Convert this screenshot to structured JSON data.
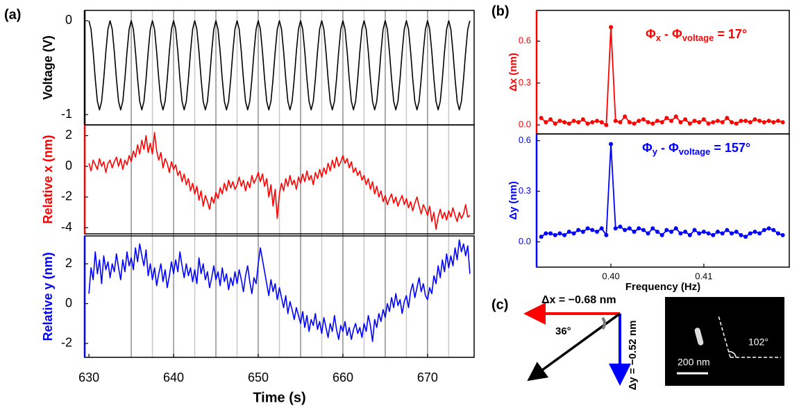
{
  "chart_data": [
    {
      "type": "line",
      "panel_label": "(a)",
      "xlabel": "Time (s)",
      "x": [
        630,
        630.25,
        630.5,
        630.75,
        631,
        631.25,
        631.5,
        631.75,
        632,
        632.25,
        632.5,
        632.75,
        633,
        633.25,
        633.5,
        633.75,
        634,
        634.25,
        634.5,
        634.75,
        635,
        635.25,
        635.5,
        635.75,
        636,
        636.25,
        636.5,
        636.75,
        637,
        637.25,
        637.5,
        637.75,
        638,
        638.25,
        638.5,
        638.75,
        639,
        639.25,
        639.5,
        639.75,
        640,
        640.25,
        640.5,
        640.75,
        641,
        641.25,
        641.5,
        641.75,
        642,
        642.25,
        642.5,
        642.75,
        643,
        643.25,
        643.5,
        643.75,
        644,
        644.25,
        644.5,
        644.75,
        645,
        645.25,
        645.5,
        645.75,
        646,
        646.25,
        646.5,
        646.75,
        647,
        647.25,
        647.5,
        647.75,
        648,
        648.25,
        648.5,
        648.75,
        649,
        649.25,
        649.5,
        649.75,
        650,
        650.25,
        650.5,
        650.75,
        651,
        651.25,
        651.5,
        651.75,
        652,
        652.25,
        652.5,
        652.75,
        653,
        653.25,
        653.5,
        653.75,
        654,
        654.25,
        654.5,
        654.75,
        655,
        655.25,
        655.5,
        655.75,
        656,
        656.25,
        656.5,
        656.75,
        657,
        657.25,
        657.5,
        657.75,
        658,
        658.25,
        658.5,
        658.75,
        659,
        659.25,
        659.5,
        659.75,
        660,
        660.25,
        660.5,
        660.75,
        661,
        661.25,
        661.5,
        661.75,
        662,
        662.25,
        662.5,
        662.75,
        663,
        663.25,
        663.5,
        663.75,
        664,
        664.25,
        664.5,
        664.75,
        665,
        665.25,
        665.5,
        665.75,
        666,
        666.25,
        666.5,
        666.75,
        667,
        667.25,
        667.5,
        667.75,
        668,
        668.25,
        668.5,
        668.75,
        669,
        669.25,
        669.5,
        669.75,
        670,
        670.25,
        670.5,
        670.75,
        671,
        671.25,
        671.5,
        671.75,
        672,
        672.25,
        672.5,
        672.75,
        673,
        673.25,
        673.5,
        673.75,
        674,
        674.25,
        674.5,
        674.75,
        675
      ],
      "xlim": [
        629.5,
        675.5
      ],
      "xticks": [
        630,
        640,
        650,
        660,
        670
      ],
      "vlines": [
        635,
        637.5,
        640,
        642.5,
        645,
        647.5,
        650,
        652.5,
        655,
        657.5,
        660,
        662.5,
        665,
        667.5,
        670,
        672.5
      ],
      "series": [
        {
          "name": "Voltage (V)",
          "color": "#000000",
          "ylim": [
            -1.11,
            0.11
          ],
          "yticks": [
            0,
            -1
          ],
          "values": [
            0,
            -0.09,
            -0.33,
            -0.62,
            -0.86,
            -0.95,
            -0.86,
            -0.62,
            -0.33,
            -0.09,
            0,
            -0.09,
            -0.33,
            -0.62,
            -0.86,
            -0.95,
            -0.86,
            -0.62,
            -0.33,
            -0.09,
            0,
            -0.09,
            -0.33,
            -0.62,
            -0.86,
            -0.95,
            -0.86,
            -0.62,
            -0.33,
            -0.09,
            0,
            -0.09,
            -0.33,
            -0.62,
            -0.86,
            -0.95,
            -0.86,
            -0.62,
            -0.33,
            -0.09,
            0,
            -0.09,
            -0.33,
            -0.62,
            -0.86,
            -0.95,
            -0.86,
            -0.62,
            -0.33,
            -0.09,
            0,
            -0.09,
            -0.33,
            -0.62,
            -0.86,
            -0.95,
            -0.86,
            -0.62,
            -0.33,
            -0.09,
            0,
            -0.09,
            -0.33,
            -0.62,
            -0.86,
            -0.95,
            -0.86,
            -0.62,
            -0.33,
            -0.09,
            0,
            -0.09,
            -0.33,
            -0.62,
            -0.86,
            -0.95,
            -0.86,
            -0.62,
            -0.33,
            -0.09,
            0,
            -0.09,
            -0.33,
            -0.62,
            -0.86,
            -0.95,
            -0.86,
            -0.62,
            -0.33,
            -0.09,
            0,
            -0.09,
            -0.33,
            -0.62,
            -0.86,
            -0.95,
            -0.86,
            -0.62,
            -0.33,
            -0.09,
            0,
            -0.09,
            -0.33,
            -0.62,
            -0.86,
            -0.95,
            -0.86,
            -0.62,
            -0.33,
            -0.09,
            0,
            -0.09,
            -0.33,
            -0.62,
            -0.86,
            -0.95,
            -0.86,
            -0.62,
            -0.33,
            -0.09,
            0,
            -0.09,
            -0.33,
            -0.62,
            -0.86,
            -0.95,
            -0.86,
            -0.62,
            -0.33,
            -0.09,
            0,
            -0.09,
            -0.33,
            -0.62,
            -0.86,
            -0.95,
            -0.86,
            -0.62,
            -0.33,
            -0.09,
            0,
            -0.09,
            -0.33,
            -0.62,
            -0.86,
            -0.95,
            -0.86,
            -0.62,
            -0.33,
            -0.09,
            0,
            -0.09,
            -0.33,
            -0.62,
            -0.86,
            -0.95,
            -0.86,
            -0.62,
            -0.33,
            -0.09,
            0,
            -0.09,
            -0.33,
            -0.62,
            -0.86,
            -0.95,
            -0.86,
            -0.62,
            -0.33,
            -0.09,
            0,
            -0.09,
            -0.33,
            -0.62,
            -0.86,
            -0.95,
            -0.86,
            -0.62,
            -0.33,
            -0.09,
            0
          ]
        },
        {
          "name": "Relative x (nm)",
          "color": "#ff0000",
          "ylim": [
            -4.4,
            2.7
          ],
          "yticks": [
            2,
            0,
            -2,
            -4
          ],
          "values": [
            0.2,
            -0.3,
            0.4,
            0.1,
            -0.2,
            0.5,
            0.0,
            0.3,
            -0.4,
            0.2,
            0.4,
            -0.1,
            0.3,
            0.6,
            0.0,
            0.5,
            -0.2,
            0.4,
            0.1,
            0.7,
            0.3,
            1.0,
            0.6,
            1.4,
            0.8,
            1.7,
            1.1,
            2.0,
            0.9,
            1.5,
            0.8,
            2.2,
            1.0,
            0.4,
            0.9,
            -0.1,
            0.5,
            0.2,
            -0.4,
            0.3,
            -0.2,
            0.1,
            -0.6,
            -0.3,
            -1.0,
            -0.5,
            -1.2,
            -0.8,
            -1.6,
            -1.1,
            -1.8,
            -1.3,
            -2.2,
            -1.6,
            -2.6,
            -1.9,
            -2.3,
            -2.8,
            -2.0,
            -2.4,
            -1.7,
            -2.1,
            -1.4,
            -1.8,
            -1.1,
            -1.6,
            -0.9,
            -1.4,
            -1.0,
            -1.5,
            -1.2,
            -0.7,
            -1.3,
            -0.9,
            -1.6,
            -1.0,
            -1.4,
            -0.6,
            -1.1,
            -0.8,
            -0.4,
            -1.0,
            -0.5,
            -1.3,
            -0.8,
            -2.0,
            -1.2,
            -2.6,
            -1.5,
            -3.4,
            -1.8,
            -1.1,
            -1.6,
            -0.8,
            -1.3,
            -0.6,
            -1.2,
            -0.9,
            -1.5,
            -0.7,
            -1.1,
            -0.5,
            -1.0,
            -0.3,
            -0.9,
            -0.6,
            -1.2,
            -0.4,
            -0.8,
            -0.2,
            -0.7,
            -0.1,
            -0.5,
            0.2,
            -0.3,
            0.4,
            -0.1,
            0.6,
            0.0,
            0.3,
            0.7,
            0.2,
            0.5,
            -0.1,
            0.3,
            -0.4,
            -0.1,
            -0.6,
            -0.3,
            -0.9,
            -0.6,
            -1.2,
            -0.8,
            -1.5,
            -1.0,
            -1.8,
            -1.3,
            -2.0,
            -1.6,
            -2.3,
            -1.9,
            -2.5,
            -2.1,
            -1.8,
            -2.4,
            -2.0,
            -2.6,
            -2.2,
            -1.9,
            -2.5,
            -2.1,
            -2.7,
            -2.3,
            -2.9,
            -2.4,
            -2.0,
            -2.6,
            -3.1,
            -2.5,
            -2.8,
            -3.2,
            -2.6,
            -3.6,
            -3.0,
            -4.1,
            -3.3,
            -2.8,
            -3.4,
            -3.0,
            -3.5,
            -2.9,
            -3.3,
            -2.7,
            -3.2,
            -3.6,
            -3.0,
            -3.4,
            -3.1,
            -2.5,
            -3.3,
            -3.2
          ]
        },
        {
          "name": "Relative y (nm)",
          "color": "#0000ff",
          "ylim": [
            -2.7,
            3.4
          ],
          "yticks": [
            2,
            0,
            -2
          ],
          "values": [
            0.5,
            1.8,
            1.2,
            2.6,
            1.5,
            2.2,
            1.0,
            2.4,
            1.7,
            2.1,
            1.3,
            2.0,
            1.6,
            2.5,
            1.8,
            1.2,
            2.2,
            1.6,
            2.6,
            1.9,
            2.3,
            1.7,
            2.8,
            2.1,
            3.0,
            2.4,
            1.9,
            2.7,
            1.4,
            2.0,
            1.2,
            1.8,
            0.9,
            1.5,
            2.0,
            1.1,
            1.7,
            0.8,
            1.4,
            2.1,
            1.5,
            2.2,
            1.6,
            2.6,
            1.9,
            1.3,
            2.0,
            1.4,
            1.8,
            1.1,
            1.7,
            1.0,
            2.3,
            1.5,
            2.0,
            1.2,
            1.6,
            0.8,
            1.3,
            1.9,
            1.2,
            1.6,
            0.9,
            1.8,
            1.1,
            1.5,
            0.7,
            1.3,
            0.9,
            1.6,
            1.0,
            1.7,
            1.2,
            0.6,
            1.4,
            1.9,
            1.1,
            0.5,
            1.3,
            1.0,
            2.0,
            2.8,
            2.2,
            1.6,
            1.0,
            0.4,
            1.2,
            0.6,
            1.0,
            0.2,
            0.8,
            0.3,
            -0.2,
            0.4,
            -0.5,
            0.1,
            -0.3,
            -0.8,
            -0.2,
            -0.6,
            -1.0,
            -0.4,
            -1.2,
            -0.6,
            -1.4,
            -0.8,
            -1.1,
            -0.5,
            -1.3,
            -0.9,
            -1.5,
            -0.7,
            -1.2,
            -1.7,
            -1.0,
            -1.4,
            -0.6,
            -1.3,
            -1.8,
            -1.1,
            -1.4,
            -0.9,
            -1.6,
            -1.2,
            -1.8,
            -1.3,
            -1.0,
            -1.5,
            -1.2,
            -1.7,
            -1.0,
            -1.4,
            -0.6,
            -1.1,
            -1.9,
            -0.8,
            -1.2,
            -0.5,
            -0.9,
            -0.3,
            -0.7,
            0.0,
            -0.4,
            0.3,
            -0.2,
            0.5,
            -0.1,
            0.2,
            -0.5,
            0.1,
            0.4,
            -0.2,
            0.6,
            1.0,
            0.3,
            0.8,
            1.3,
            0.6,
            1.0,
            0.4,
            0.2,
            0.8,
            0.5,
            1.4,
            1.0,
            1.9,
            1.3,
            2.2,
            1.6,
            2.5,
            1.8,
            2.4,
            1.9,
            2.8,
            2.2,
            3.2,
            2.6,
            3.0,
            2.4,
            2.9,
            1.5
          ]
        }
      ]
    },
    {
      "type": "line",
      "panel_label": "(b)",
      "xlabel": "Frequency (Hz)",
      "markers": true,
      "x": [
        0.3925,
        0.393,
        0.3935,
        0.394,
        0.3945,
        0.395,
        0.3955,
        0.396,
        0.3965,
        0.397,
        0.3975,
        0.398,
        0.3985,
        0.399,
        0.3995,
        0.4,
        0.4005,
        0.401,
        0.4015,
        0.402,
        0.4025,
        0.403,
        0.4035,
        0.404,
        0.4045,
        0.405,
        0.4055,
        0.406,
        0.4065,
        0.407,
        0.4075,
        0.408,
        0.4085,
        0.409,
        0.4095,
        0.41,
        0.4105,
        0.411,
        0.4115,
        0.412,
        0.4125,
        0.413,
        0.4135,
        0.414,
        0.4145,
        0.415,
        0.4155,
        0.416,
        0.4165,
        0.417,
        0.4175,
        0.418,
        0.4185
      ],
      "xlim": [
        0.392,
        0.4192
      ],
      "xticks": [
        {
          "value": 0.4,
          "label": "0.40"
        },
        0.41
      ],
      "series": [
        {
          "name": "Δx (nm)",
          "color": "#ff0000",
          "ylim": [
            -0.064,
            0.82
          ],
          "yticks": [
            {
              "value": 0,
              "label": "0.0"
            },
            0.3,
            0.6
          ],
          "annotation": [
            "Φ",
            "x",
            " - Φ",
            "voltage",
            " = 17°"
          ],
          "values": [
            0.05,
            0.02,
            0.04,
            0.01,
            0.03,
            0.02,
            0.01,
            0.03,
            0.02,
            0.04,
            0.01,
            0.02,
            0.03,
            0.02,
            0.0,
            0.7,
            0.03,
            0.02,
            0.06,
            0.02,
            0.01,
            0.03,
            0.04,
            0.02,
            0.01,
            0.03,
            0.02,
            0.05,
            0.03,
            0.06,
            0.02,
            0.04,
            0.01,
            0.03,
            0.02,
            0.04,
            0.01,
            0.02,
            0.03,
            0.02,
            0.05,
            0.02,
            0.01,
            0.03,
            0.03,
            0.02,
            0.04,
            0.03,
            0.02,
            0.03,
            0.02,
            0.03,
            0.02
          ]
        },
        {
          "name": "Δy (nm)",
          "color": "#0000ff",
          "ylim": [
            -0.15,
            0.64
          ],
          "yticks": [
            {
              "value": 0,
              "label": "0.0"
            },
            0.3,
            0.6
          ],
          "annotation": [
            "Φ",
            "y",
            " - Φ",
            "voltage",
            " = 157°"
          ],
          "values": [
            0.03,
            0.05,
            0.05,
            0.04,
            0.05,
            0.04,
            0.06,
            0.05,
            0.07,
            0.06,
            0.08,
            0.07,
            0.06,
            0.08,
            0.04,
            0.58,
            0.08,
            0.09,
            0.07,
            0.08,
            0.06,
            0.08,
            0.07,
            0.05,
            0.08,
            0.06,
            0.04,
            0.07,
            0.06,
            0.08,
            0.05,
            0.06,
            0.04,
            0.07,
            0.05,
            0.06,
            0.05,
            0.04,
            0.06,
            0.05,
            0.07,
            0.05,
            0.06,
            0.04,
            0.03,
            0.05,
            0.06,
            0.05,
            0.07,
            0.08,
            0.07,
            0.05,
            0.04
          ]
        }
      ]
    }
  ],
  "diagram": {
    "panel_label": "(c)",
    "dx_label": "Δx = −0.68 nm",
    "dy_label": "Δy = −0.52 nm",
    "angle_label": "36°",
    "scale_bar": "200 nm",
    "image_angle": "102°"
  }
}
